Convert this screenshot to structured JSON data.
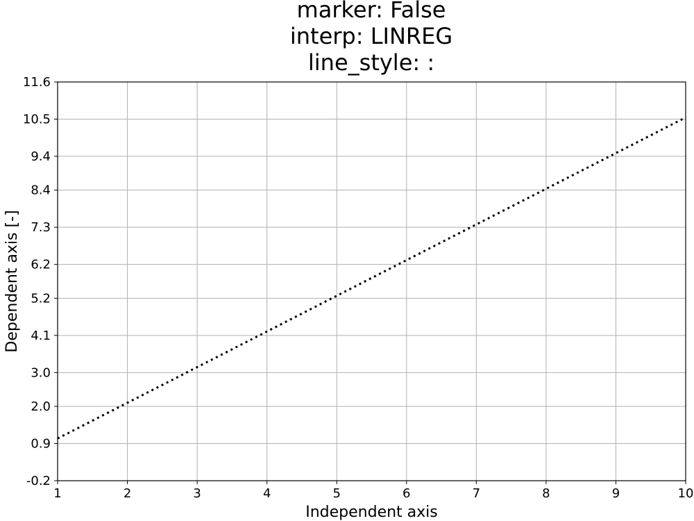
{
  "chart_data": {
    "type": "line",
    "title_lines": [
      "marker: False",
      "interp: LINREG",
      "line_style: :"
    ],
    "xlabel": "Independent axis",
    "ylabel": "Dependent axis [-]",
    "xlim": [
      1,
      10
    ],
    "ylim": [
      -0.2,
      11.6
    ],
    "x_ticks": [
      "1",
      "2",
      "3",
      "4",
      "5",
      "6",
      "7",
      "8",
      "9",
      "10"
    ],
    "y_ticks": [
      "-0.2",
      "0.9",
      "2.0",
      "3.0",
      "4.1",
      "5.2",
      "6.2",
      "7.3",
      "8.4",
      "9.4",
      "10.5",
      "11.6"
    ],
    "grid": true,
    "series": [
      {
        "x": [
          1,
          10
        ],
        "y": [
          1.05,
          10.55
        ],
        "line_style": "dotted",
        "color": "#000000",
        "marker": false
      }
    ]
  }
}
